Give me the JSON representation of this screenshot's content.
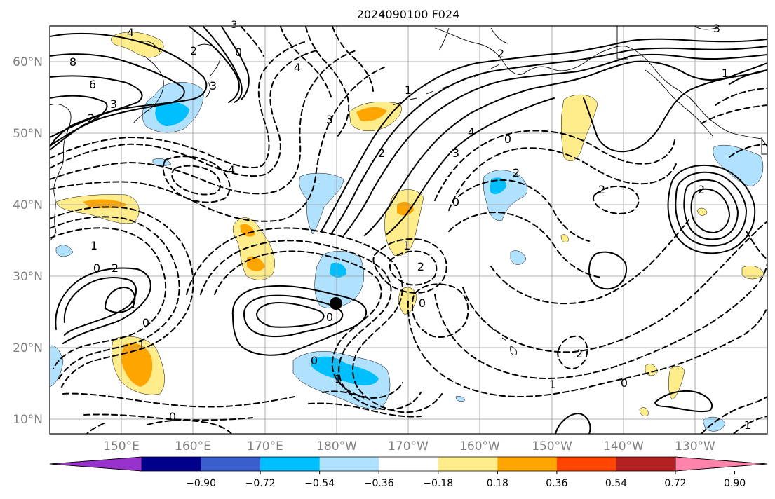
{
  "title": "2024090100 F024",
  "axes": {
    "lat_labels": [
      "60°N",
      "50°N",
      "40°N",
      "30°N",
      "20°N",
      "10°N"
    ],
    "lon_labels": [
      "150°E",
      "160°E",
      "170°E",
      "180°W",
      "170°W",
      "160°W",
      "150°W",
      "140°W",
      "130°W"
    ]
  },
  "colorbar": {
    "colors": [
      "#9932cc",
      "#00008b",
      "#3a5fcd",
      "#00bfff",
      "#b0e2ff",
      "#ffffff",
      "#ffec8b",
      "#ffa500",
      "#ff4500",
      "#b22222",
      "#ff83aa"
    ],
    "tick_labels": [
      "−0.90",
      "−0.72",
      "−0.54",
      "−0.36",
      "−0.18",
      "0.18",
      "0.36",
      "0.54",
      "0.72",
      "0.90"
    ]
  },
  "contour_labels": [
    {
      "text": "4"
    },
    {
      "text": "8"
    },
    {
      "text": "6"
    },
    {
      "text": "3"
    },
    {
      "text": "2"
    },
    {
      "text": "2"
    },
    {
      "text": "0"
    },
    {
      "text": "3"
    },
    {
      "text": "4"
    },
    {
      "text": "3"
    },
    {
      "text": "1"
    },
    {
      "text": "2"
    },
    {
      "text": "4"
    },
    {
      "text": "3"
    },
    {
      "text": "0"
    },
    {
      "text": "2"
    },
    {
      "text": "2"
    },
    {
      "text": "1"
    },
    {
      "text": "0"
    },
    {
      "text": "1"
    },
    {
      "text": "0"
    },
    {
      "text": "2"
    },
    {
      "text": "1"
    },
    {
      "text": "0"
    },
    {
      "text": "1"
    },
    {
      "text": "0"
    },
    {
      "text": "0"
    },
    {
      "text": "1"
    },
    {
      "text": "2"
    },
    {
      "text": "0"
    },
    {
      "text": "0"
    },
    {
      "text": "1"
    },
    {
      "text": "3"
    },
    {
      "text": "4"
    },
    {
      "text": "2"
    },
    {
      "text": "1"
    },
    {
      "text": "3"
    },
    {
      "text": "2"
    },
    {
      "text": "0"
    },
    {
      "text": "2"
    },
    {
      "text": "1"
    }
  ],
  "marker": {
    "name": "storm-center",
    "color": "#000000"
  },
  "colors": {
    "positive_contour": "#000000",
    "negative_contour": "#000000",
    "grid": "#9a9a9a",
    "coast": "#000000"
  }
}
